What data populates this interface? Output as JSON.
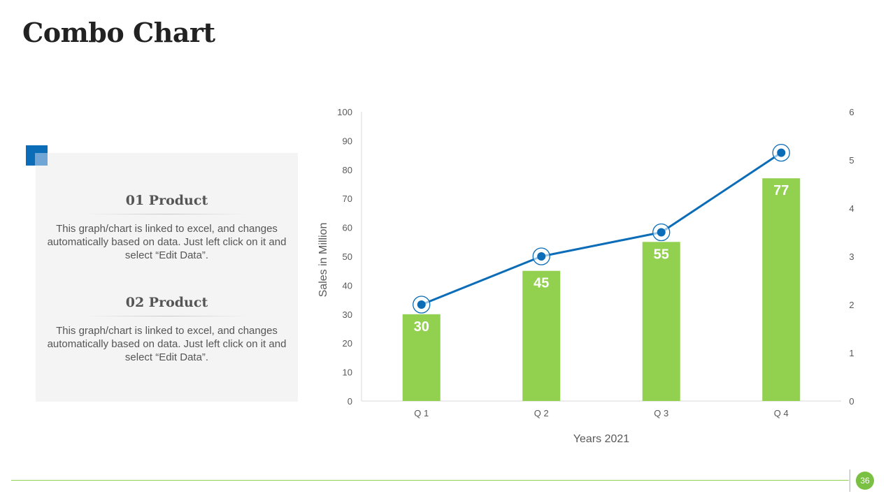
{
  "slide": {
    "title": "Combo Chart",
    "page_number": "36"
  },
  "panel": {
    "products": [
      {
        "heading": "01 Product",
        "body": "This graph/chart is linked to excel, and changes automatically based on data. Just left click on it and select “Edit Data”."
      },
      {
        "heading": "02 Product",
        "body": "This graph/chart is linked to excel, and changes automatically based on data. Just left click on it and select “Edit Data”."
      }
    ]
  },
  "colors": {
    "bar": "#92d050",
    "line": "#0b6cb7",
    "axis": "#d9d9d9",
    "tick_text": "#595959",
    "bar_label": "#ffffff",
    "accent_green": "#7ac143",
    "accent_blue": "#0b6cb7"
  },
  "chart_data": {
    "type": "bar",
    "title": "",
    "categories": [
      "Q 1",
      "Q 2",
      "Q 3",
      "Q 4"
    ],
    "xlabel": "Years 2021",
    "ylabel": "Sales in Million",
    "ylim": [
      0,
      100
    ],
    "y_ticks": [
      "0",
      "10",
      "20",
      "30",
      "40",
      "50",
      "60",
      "70",
      "80",
      "90",
      "100"
    ],
    "y2lim": [
      0,
      6
    ],
    "y2_ticks": [
      "0",
      "1",
      "2",
      "3",
      "4",
      "5",
      "6"
    ],
    "grid": false,
    "legend": "none",
    "series": [
      {
        "name": "Sales",
        "type": "bar",
        "axis": "left",
        "values": [
          30,
          45,
          55,
          77
        ],
        "labels": [
          "30",
          "45",
          "55",
          "77"
        ]
      },
      {
        "name": "Trend",
        "type": "line",
        "axis": "right",
        "values": [
          2.0,
          3.0,
          3.5,
          5.15
        ]
      }
    ]
  }
}
